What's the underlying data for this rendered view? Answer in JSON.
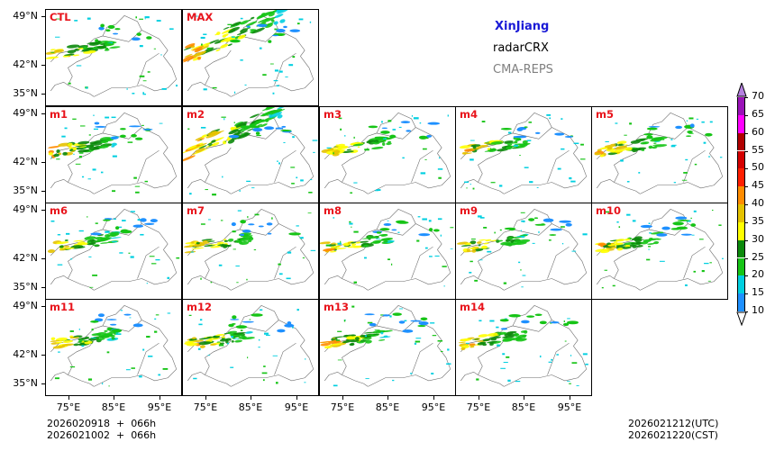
{
  "title": {
    "region": "XinJiang",
    "variable": "radarCRX",
    "model": "CMA-REPS",
    "colors": {
      "region": "#1a1ad6",
      "variable": "#111111",
      "model": "#808080"
    }
  },
  "footer": {
    "init_utc": "2026020918  +  066h",
    "init_cst": "2026021002  +  066h",
    "valid_utc": "2026021212(UTC)",
    "valid_cst": "2026021220(CST)"
  },
  "chart_data": {
    "type": "heatmap",
    "variable": "radar composite reflectivity",
    "panel_labels": [
      "CTL",
      "MAX",
      "m1",
      "m2",
      "m3",
      "m4",
      "m5",
      "m6",
      "m7",
      "m8",
      "m9",
      "m10",
      "m11",
      "m12",
      "m13",
      "m14"
    ],
    "y_ticks": [
      "49°N",
      "42°N",
      "35°N"
    ],
    "x_ticks": [
      "75°E",
      "85°E",
      "95°E"
    ],
    "colorbar": {
      "levels": [
        10,
        15,
        20,
        25,
        30,
        35,
        40,
        45,
        50,
        55,
        60,
        65,
        70
      ],
      "colors": [
        "#1e90ff",
        "#00cfe0",
        "#16c416",
        "#0c8a0c",
        "#ffff00",
        "#e5c200",
        "#ff8c00",
        "#ff1f00",
        "#d40000",
        "#b00000",
        "#ff00ff",
        "#9a12b8",
        "#b580e0"
      ],
      "extend": "both"
    },
    "panel_label_color": "#e8141c"
  }
}
